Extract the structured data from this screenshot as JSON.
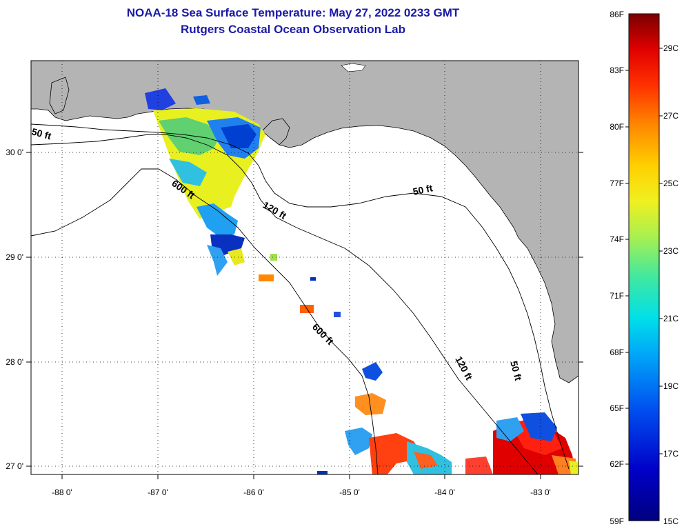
{
  "header": {
    "title": "NOAA-18 Sea Surface Temperature:  May 27, 2022 0233 GMT",
    "subtitle": "Rutgers Coastal Ocean Observation Lab"
  },
  "axes": {
    "x_ticks": [
      "-88 0'",
      "-87 0'",
      "-86 0'",
      "-85 0'",
      "-84 0'",
      "-83 0'"
    ],
    "y_ticks": [
      "30 0'",
      "29 0'",
      "28 0'",
      "27 0'"
    ]
  },
  "contours": {
    "c50_west": "50 ft",
    "c50_mid": "50 ft",
    "c50_south": "50 ft",
    "c120_north": "120 ft",
    "c120_south": "120 ft",
    "c600_north": "600 ft",
    "c600_south": "600 ft"
  },
  "colorbar": {
    "fahrenheit": [
      "86F",
      "83F",
      "80F",
      "77F",
      "74F",
      "71F",
      "68F",
      "65F",
      "62F",
      "59F"
    ],
    "celsius": [
      "29C",
      "27C",
      "25C",
      "23C",
      "21C",
      "19C",
      "17C",
      "15C"
    ],
    "colors": [
      "#7a0000",
      "#ff1a00",
      "#ff7a00",
      "#ffd200",
      "#f0f020",
      "#a0e040",
      "#30e0a0",
      "#00d8f0",
      "#0090f0",
      "#2040e0",
      "#0000b0",
      "#000080"
    ]
  },
  "chart_data": {
    "type": "heatmap",
    "title": "NOAA-18 Sea Surface Temperature:  May 27, 2022 0233 GMT",
    "subtitle": "Rutgers Coastal Ocean Observation Lab",
    "lon_range": [
      -88.3,
      -82.5
    ],
    "lat_range": [
      26.95,
      30.85
    ],
    "colorscale_F": [
      59,
      86
    ],
    "colorscale_C": [
      15,
      30
    ]
  }
}
